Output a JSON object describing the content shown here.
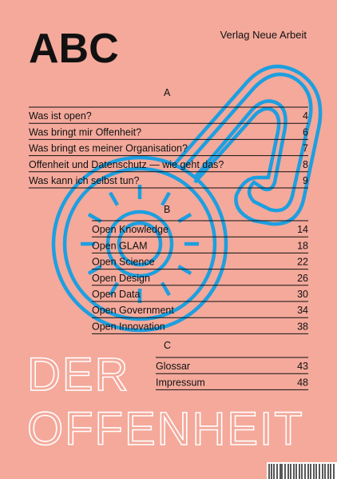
{
  "header": {
    "title": "ABC",
    "publisher": "Verlag Neue Arbeit"
  },
  "sections": [
    {
      "label": "A",
      "entries": [
        {
          "title": "Was ist open?",
          "page": 4
        },
        {
          "title": "Was bringt mir Offenheit?",
          "page": 6
        },
        {
          "title": "Was bringt es meiner Organisation?",
          "page": 7
        },
        {
          "title": "Offenheit und Datenschutz — wie geht das?",
          "page": 8
        },
        {
          "title": "Was kann ich selbst tun?",
          "page": 9
        }
      ]
    },
    {
      "label": "B",
      "entries": [
        {
          "title": "Open Knowledge",
          "page": 14
        },
        {
          "title": "Open GLAM",
          "page": 18
        },
        {
          "title": "Open Science",
          "page": 22
        },
        {
          "title": "Open Design",
          "page": 26
        },
        {
          "title": "Open Data",
          "page": 30
        },
        {
          "title": "Open Government",
          "page": 34
        },
        {
          "title": "Open Innovation",
          "page": 38
        }
      ]
    },
    {
      "label": "C",
      "entries": [
        {
          "title": "Glossar",
          "page": 43
        },
        {
          "title": "Impressum",
          "page": 48
        }
      ]
    }
  ],
  "footer": {
    "line1": "DER",
    "line2": "OFFENHEIT"
  }
}
